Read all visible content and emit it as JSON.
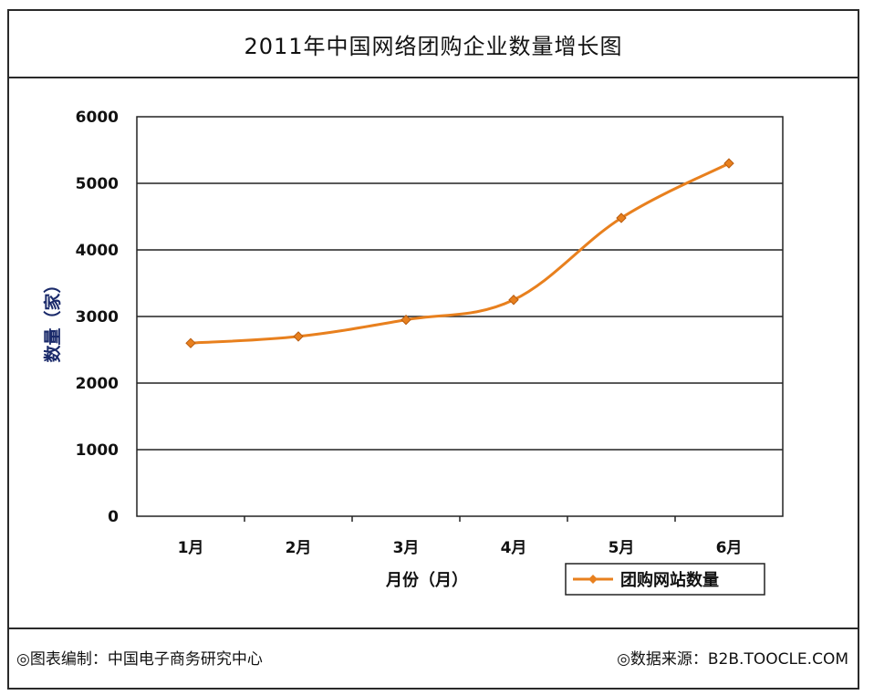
{
  "chart_data": {
    "type": "line",
    "title": "2011年中国网络团购企业数量增长图",
    "xlabel": "月份（月）",
    "ylabel": "数量（家）",
    "categories": [
      "1月",
      "2月",
      "3月",
      "4月",
      "5月",
      "6月"
    ],
    "series": [
      {
        "name": "团购网站数量",
        "values": [
          2600,
          2700,
          2950,
          3250,
          4480,
          5300
        ],
        "color": "#e8801e"
      }
    ],
    "ylim": [
      0,
      6000
    ],
    "yticks": [
      "0",
      "1000",
      "2000",
      "3000",
      "4000",
      "5000",
      "6000"
    ],
    "grid": true,
    "legend_position": "bottom-right"
  },
  "footer": {
    "left": "◎图表编制：中国电子商务研究中心",
    "right": "◎数据来源：B2B.TOOCLE.COM"
  }
}
